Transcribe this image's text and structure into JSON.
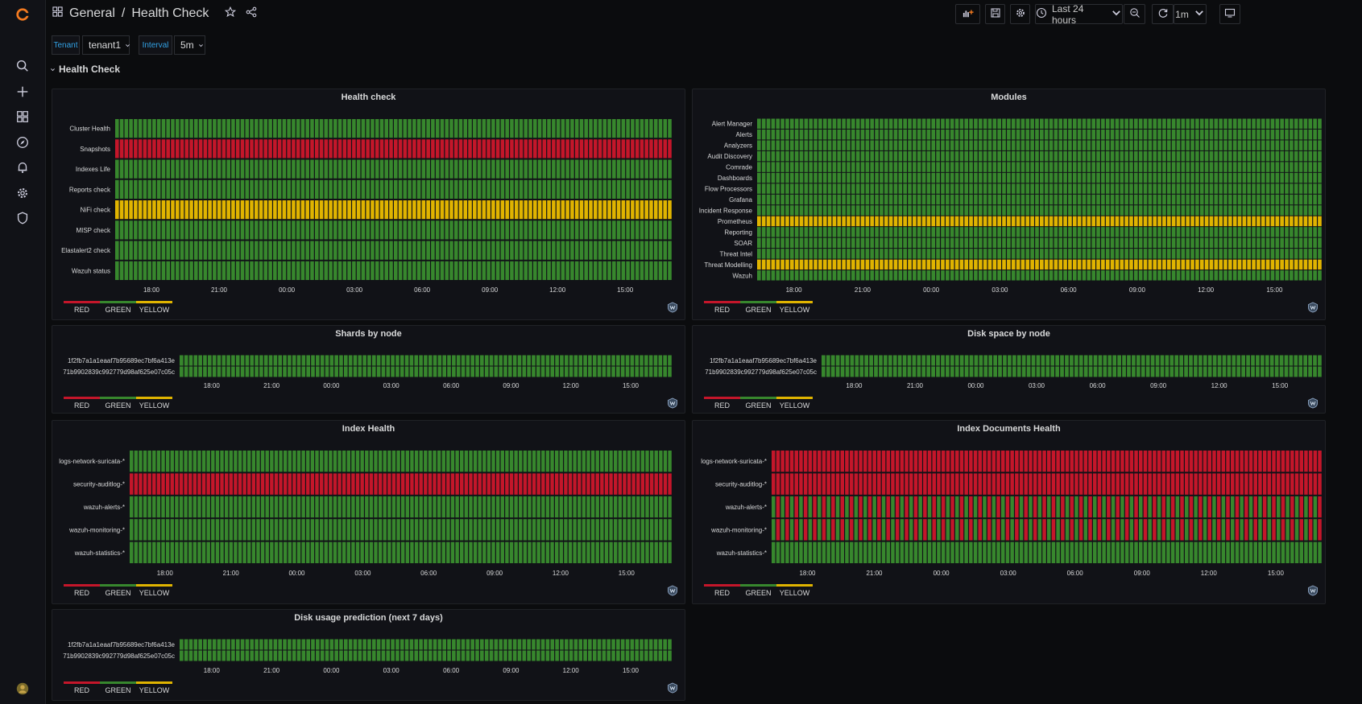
{
  "breadcrumb": {
    "folder": "General",
    "separator": "/",
    "dashboard": "Health Check"
  },
  "toolbar": {
    "time_range": "Last 24 hours",
    "refresh_interval": "1m"
  },
  "variables": [
    {
      "label": "Tenant",
      "value": "tenant1"
    },
    {
      "label": "Interval",
      "value": "5m"
    }
  ],
  "row": {
    "title": "Health Check"
  },
  "colors": {
    "red": "#c4162a",
    "green": "#37872d",
    "yellow": "#e0b400",
    "accent": "#33a2e5"
  },
  "legend": [
    "RED",
    "GREEN",
    "YELLOW"
  ],
  "icons": [
    "grafana-logo",
    "apps-icon",
    "star-icon",
    "share-icon",
    "add-panel-icon",
    "save-icon",
    "settings-icon",
    "clock-icon",
    "zoom-out-icon",
    "refresh-icon",
    "tv-icon",
    "search-icon",
    "plus-icon",
    "dashboards-icon",
    "explore-icon",
    "bell-icon",
    "gear-icon",
    "shield-icon",
    "wazuh-icon"
  ],
  "panels": {
    "health_check": {
      "title": "Health check"
    },
    "modules": {
      "title": "Modules"
    },
    "shards": {
      "title": "Shards by node"
    },
    "disk_space": {
      "title": "Disk space by node"
    },
    "index_health": {
      "title": "Index Health"
    },
    "index_docs": {
      "title": "Index Documents Health"
    },
    "disk_prediction": {
      "title": "Disk usage prediction (next 7 days)"
    }
  },
  "chart_data": [
    {
      "id": "health_check",
      "type": "heatmap",
      "title": "Health check",
      "x_ticks": [
        "18:00",
        "21:00",
        "00:00",
        "03:00",
        "06:00",
        "09:00",
        "12:00",
        "15:00"
      ],
      "rows": [
        {
          "label": "Cluster Health",
          "status": "GREEN"
        },
        {
          "label": "Snapshots",
          "status": "RED"
        },
        {
          "label": "Indexes Life",
          "status": "GREEN"
        },
        {
          "label": "Reports check",
          "status": "GREEN"
        },
        {
          "label": "NiFi check",
          "status": "YELLOW"
        },
        {
          "label": "MISP check",
          "status": "GREEN"
        },
        {
          "label": "Elastalert2 check",
          "status": "GREEN"
        },
        {
          "label": "Wazuh status",
          "status": "GREEN"
        }
      ]
    },
    {
      "id": "modules",
      "type": "heatmap",
      "title": "Modules",
      "x_ticks": [
        "18:00",
        "21:00",
        "00:00",
        "03:00",
        "06:00",
        "09:00",
        "12:00",
        "15:00"
      ],
      "rows": [
        {
          "label": "Alert Manager",
          "status": "GREEN"
        },
        {
          "label": "Alerts",
          "status": "GREEN"
        },
        {
          "label": "Analyzers",
          "status": "GREEN"
        },
        {
          "label": "Audit Discovery",
          "status": "GREEN"
        },
        {
          "label": "Comrade",
          "status": "GREEN"
        },
        {
          "label": "Dashboards",
          "status": "GREEN"
        },
        {
          "label": "Flow Processors",
          "status": "GREEN"
        },
        {
          "label": "Grafana",
          "status": "GREEN"
        },
        {
          "label": "Incident Response",
          "status": "GREEN"
        },
        {
          "label": "Prometheus",
          "status": "YELLOW"
        },
        {
          "label": "Reporting",
          "status": "GREEN"
        },
        {
          "label": "SOAR",
          "status": "GREEN"
        },
        {
          "label": "Threat Intel",
          "status": "GREEN"
        },
        {
          "label": "Threat Modelling",
          "status": "YELLOW"
        },
        {
          "label": "Wazuh",
          "status": "GREEN"
        }
      ]
    },
    {
      "id": "shards",
      "type": "heatmap",
      "title": "Shards by node",
      "x_ticks": [
        "18:00",
        "21:00",
        "00:00",
        "03:00",
        "06:00",
        "09:00",
        "12:00",
        "15:00"
      ],
      "rows": [
        {
          "label": "1f2fb7a1a1eaaf7b95689ec7bf6a413e",
          "status": "GREEN"
        },
        {
          "label": "71b9902839c992779d98af625e07c05c",
          "status": "GREEN"
        }
      ]
    },
    {
      "id": "disk_space",
      "type": "heatmap",
      "title": "Disk space by node",
      "x_ticks": [
        "18:00",
        "21:00",
        "00:00",
        "03:00",
        "06:00",
        "09:00",
        "12:00",
        "15:00"
      ],
      "rows": [
        {
          "label": "1f2fb7a1a1eaaf7b95689ec7bf6a413e",
          "status": "GREEN"
        },
        {
          "label": "71b9902839c992779d98af625e07c05c",
          "status": "GREEN"
        }
      ]
    },
    {
      "id": "index_health",
      "type": "heatmap",
      "title": "Index Health",
      "x_ticks": [
        "18:00",
        "21:00",
        "00:00",
        "03:00",
        "06:00",
        "09:00",
        "12:00",
        "15:00"
      ],
      "rows": [
        {
          "label": "logs-network-suricata-*",
          "status": "GREEN"
        },
        {
          "label": "security-auditlog-*",
          "status": "RED"
        },
        {
          "label": "wazuh-alerts-*",
          "status": "GREEN"
        },
        {
          "label": "wazuh-monitoring-*",
          "status": "GREEN"
        },
        {
          "label": "wazuh-statistics-*",
          "status": "GREEN"
        }
      ]
    },
    {
      "id": "index_docs",
      "type": "heatmap",
      "title": "Index Documents Health",
      "x_ticks": [
        "18:00",
        "21:00",
        "00:00",
        "03:00",
        "06:00",
        "09:00",
        "12:00",
        "15:00"
      ],
      "rows": [
        {
          "label": "logs-network-suricata-*",
          "status": "RED"
        },
        {
          "label": "security-auditlog-*",
          "status": "RED"
        },
        {
          "label": "wazuh-alerts-*",
          "status": "ALTERNATING RED/GREEN"
        },
        {
          "label": "wazuh-monitoring-*",
          "status": "ALTERNATING RED/GREEN"
        },
        {
          "label": "wazuh-statistics-*",
          "status": "GREEN"
        }
      ]
    },
    {
      "id": "disk_prediction",
      "type": "heatmap",
      "title": "Disk usage prediction (next 7 days)",
      "x_ticks": [
        "18:00",
        "21:00",
        "00:00",
        "03:00",
        "06:00",
        "09:00",
        "12:00",
        "15:00"
      ],
      "rows": [
        {
          "label": "1f2fb7a1a1eaaf7b95689ec7bf6a413e",
          "status": "GREEN"
        },
        {
          "label": "71b9902839c992779d98af625e07c05c",
          "status": "GREEN"
        }
      ]
    }
  ]
}
